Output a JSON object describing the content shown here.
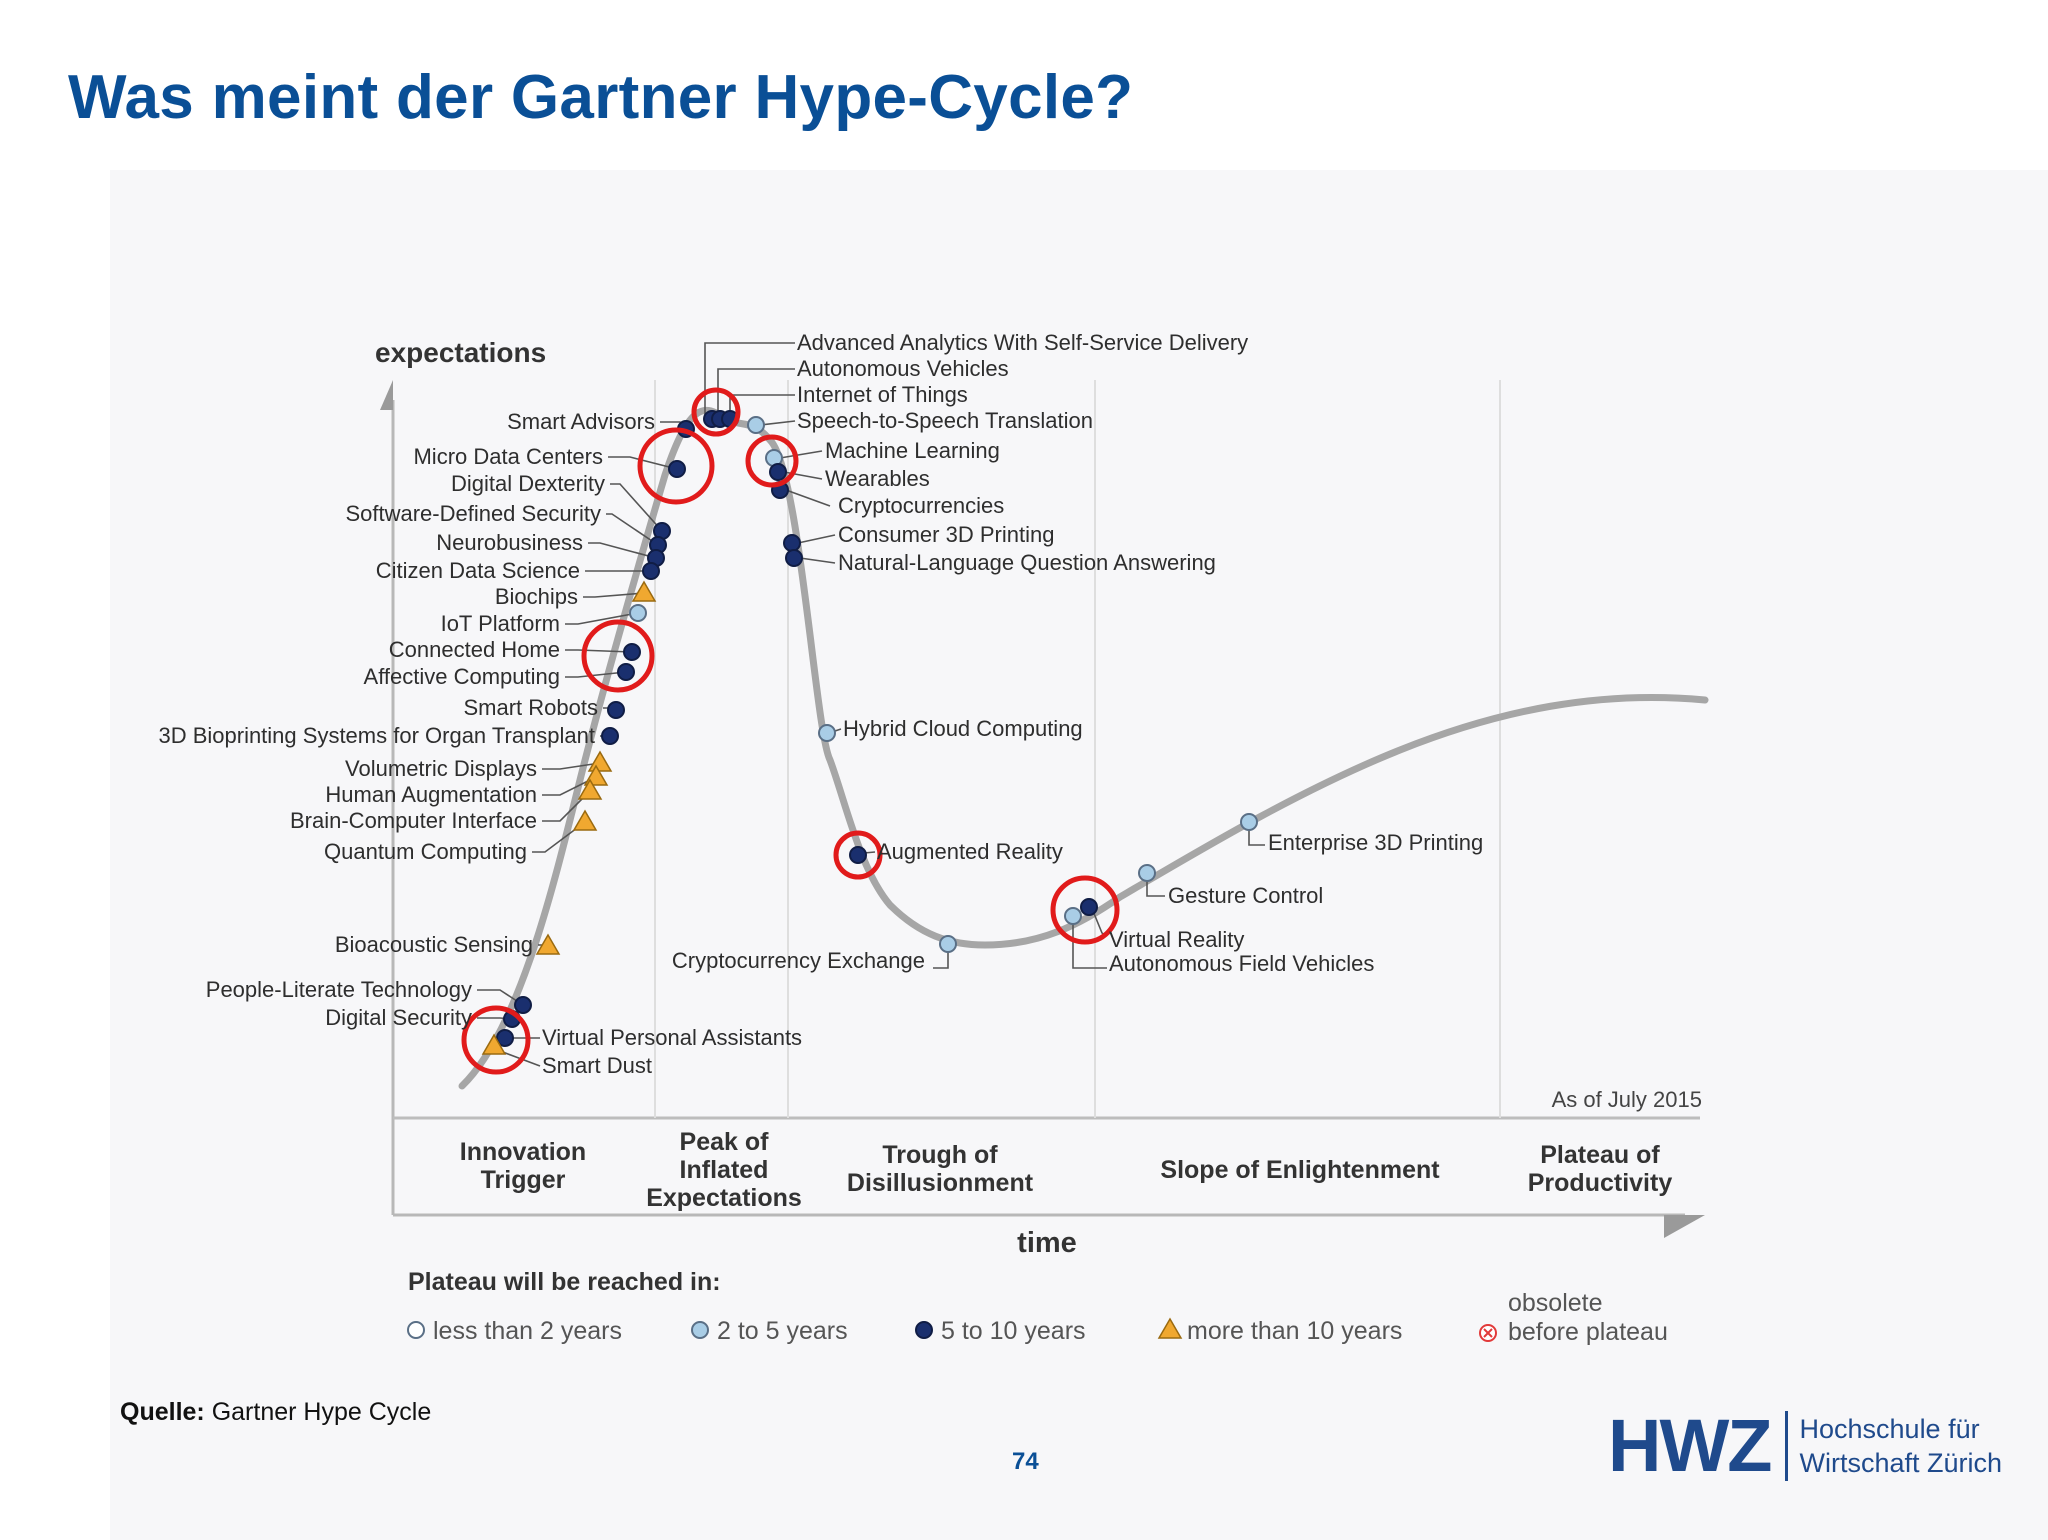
{
  "slide": {
    "title": "Was meint der Gartner Hype-Cycle?",
    "source_label": "Quelle:",
    "source_text": "Gartner Hype Cycle",
    "page_number": "74"
  },
  "logo": {
    "mark": "HWZ",
    "line1": "Hochschule für",
    "line2": "Wirtschaft Zürich"
  },
  "chart": {
    "y_axis_label": "expectations",
    "x_axis_label": "time",
    "as_of": "As of July 2015",
    "phases": [
      [
        "Innovation",
        "Trigger"
      ],
      [
        "Peak of",
        "Inflated",
        "Expectations"
      ],
      [
        "Trough of",
        "Disillusionment"
      ],
      [
        "Slope of Enlightenment"
      ],
      [
        "Plateau of",
        "Productivity"
      ]
    ],
    "legend_title": "Plateau will be reached in:",
    "legend": [
      {
        "key": "lt2",
        "label": "less than 2 years"
      },
      {
        "key": "2to5",
        "label": "2 to 5 years"
      },
      {
        "key": "5to10",
        "label": "5 to 10 years"
      },
      {
        "key": "gt10",
        "label": "more than 10 years"
      },
      {
        "key": "obsolete",
        "label": "obsolete",
        "label2": "before plateau"
      }
    ],
    "colors": {
      "curve": "#a6a6a6",
      "lt2": "#ffffff",
      "2to5": "#a9cde6",
      "5to10": "#1a2f6e",
      "gt10": "#f0a830",
      "obsolete": "#e23a3a",
      "highlight": "#e11b1b",
      "title": "#0a4f96"
    },
    "technologies": [
      {
        "name": "Advanced Analytics With Self-Service Delivery",
        "plateau": "5to10",
        "highlighted": true
      },
      {
        "name": "Autonomous Vehicles",
        "plateau": "5to10",
        "highlighted": true
      },
      {
        "name": "Internet of Things",
        "plateau": "5to10",
        "highlighted": true
      },
      {
        "name": "Speech-to-Speech Translation",
        "plateau": "2to5",
        "highlighted": false
      },
      {
        "name": "Machine Learning",
        "plateau": "2to5",
        "highlighted": true
      },
      {
        "name": "Wearables",
        "plateau": "5to10",
        "highlighted": true
      },
      {
        "name": "Cryptocurrencies",
        "plateau": "5to10",
        "highlighted": false
      },
      {
        "name": "Consumer 3D Printing",
        "plateau": "5to10",
        "highlighted": false
      },
      {
        "name": "Natural-Language Question Answering",
        "plateau": "5to10",
        "highlighted": false
      },
      {
        "name": "Smart Advisors",
        "plateau": "5to10",
        "highlighted": false
      },
      {
        "name": "Micro Data Centers",
        "plateau": "5to10",
        "highlighted": true
      },
      {
        "name": "Digital Dexterity",
        "plateau": "5to10",
        "highlighted": false
      },
      {
        "name": "Software-Defined Security",
        "plateau": "5to10",
        "highlighted": false
      },
      {
        "name": "Neurobusiness",
        "plateau": "5to10",
        "highlighted": false
      },
      {
        "name": "Citizen Data Science",
        "plateau": "5to10",
        "highlighted": false
      },
      {
        "name": "Biochips",
        "plateau": "gt10",
        "highlighted": false
      },
      {
        "name": "IoT Platform",
        "plateau": "2to5",
        "highlighted": false
      },
      {
        "name": "Connected Home",
        "plateau": "5to10",
        "highlighted": true
      },
      {
        "name": "Affective Computing",
        "plateau": "5to10",
        "highlighted": true
      },
      {
        "name": "Smart Robots",
        "plateau": "5to10",
        "highlighted": false
      },
      {
        "name": "3D Bioprinting Systems for Organ Transplant",
        "plateau": "5to10",
        "highlighted": false
      },
      {
        "name": "Volumetric Displays",
        "plateau": "gt10",
        "highlighted": false
      },
      {
        "name": "Human Augmentation",
        "plateau": "gt10",
        "highlighted": false
      },
      {
        "name": "Brain-Computer Interface",
        "plateau": "gt10",
        "highlighted": false
      },
      {
        "name": "Quantum Computing",
        "plateau": "gt10",
        "highlighted": false
      },
      {
        "name": "Bioacoustic Sensing",
        "plateau": "gt10",
        "highlighted": false
      },
      {
        "name": "People-Literate Technology",
        "plateau": "5to10",
        "highlighted": false
      },
      {
        "name": "Digital Security",
        "plateau": "5to10",
        "highlighted": false
      },
      {
        "name": "Virtual Personal Assistants",
        "plateau": "5to10",
        "highlighted": true
      },
      {
        "name": "Smart Dust",
        "plateau": "gt10",
        "highlighted": true
      },
      {
        "name": "Hybrid Cloud Computing",
        "plateau": "2to5",
        "highlighted": false
      },
      {
        "name": "Augmented Reality",
        "plateau": "5to10",
        "highlighted": true
      },
      {
        "name": "Cryptocurrency Exchange",
        "plateau": "2to5",
        "highlighted": false
      },
      {
        "name": "Virtual Reality",
        "plateau": "5to10",
        "highlighted": true
      },
      {
        "name": "Autonomous Field Vehicles",
        "plateau": "2to5",
        "highlighted": true
      },
      {
        "name": "Gesture Control",
        "plateau": "2to5",
        "highlighted": false
      },
      {
        "name": "Enterprise 3D Printing",
        "plateau": "2to5",
        "highlighted": false
      }
    ]
  }
}
